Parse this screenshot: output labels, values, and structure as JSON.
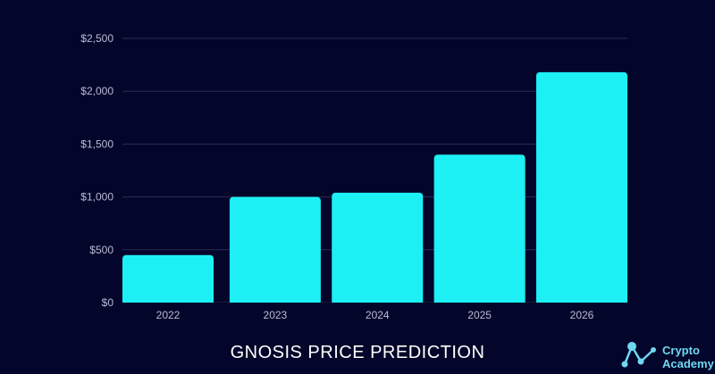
{
  "chart_data": {
    "type": "bar",
    "title": "GNOSIS PRICE PREDICTION",
    "xlabel": "",
    "ylabel": "",
    "categories": [
      "2022",
      "2023",
      "2024",
      "2025",
      "2026"
    ],
    "values": [
      450,
      1000,
      1040,
      1400,
      2180
    ],
    "ylim": [
      0,
      2500
    ],
    "yticks": [
      {
        "value": 0,
        "label": "$0"
      },
      {
        "value": 500,
        "label": "$500"
      },
      {
        "value": 1000,
        "label": "$1,000"
      },
      {
        "value": 1500,
        "label": "$1,500"
      },
      {
        "value": 2000,
        "label": "$2,000"
      },
      {
        "value": 2500,
        "label": "$2,500"
      }
    ],
    "grid": true,
    "bar_color": "#1cf0f5",
    "background_color": "#04052a",
    "grid_color": "#2a2d52"
  },
  "logo": {
    "line1": "Crypto",
    "line2": "Academy",
    "icon": "network-nodes-icon",
    "color": "#6fd7f2"
  }
}
